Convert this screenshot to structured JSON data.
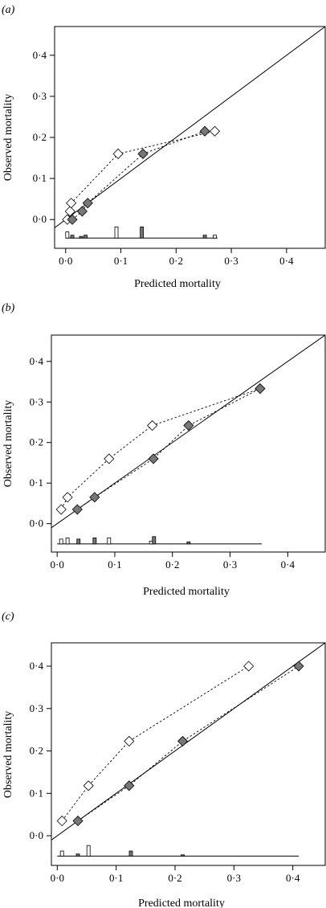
{
  "chart_data": [
    {
      "type": "scatter",
      "panel_label": "(a)",
      "xlabel": "Predicted mortality",
      "ylabel": "Observed mortality",
      "xlim": [
        -0.02,
        0.47
      ],
      "ylim": [
        -0.07,
        0.47
      ],
      "xticks": [
        0.0,
        0.1,
        0.2,
        0.3,
        0.4
      ],
      "yticks": [
        0.0,
        0.1,
        0.2,
        0.3,
        0.4
      ],
      "xtick_labels": [
        "0·0",
        "0·1",
        "0·2",
        "0·3",
        "0·4"
      ],
      "ytick_labels": [
        "0·0",
        "0·1",
        "0·2",
        "0·3",
        "0·4"
      ],
      "reference_line": "y = x",
      "series": [
        {
          "marker": "open-diamond",
          "color": "#ffffff",
          "x": [
            0.003,
            0.008,
            0.01,
            0.095,
            0.27
          ],
          "y": [
            0.0,
            0.02,
            0.04,
            0.16,
            0.215
          ]
        },
        {
          "marker": "filled-diamond",
          "color": "#777777",
          "x": [
            0.012,
            0.03,
            0.04,
            0.14,
            0.252
          ],
          "y": [
            0.0,
            0.02,
            0.04,
            0.16,
            0.215
          ]
        }
      ],
      "histogram": {
        "baseline_y": -0.045,
        "end_x": 0.275,
        "bars": [
          {
            "x": 0.003,
            "h": 0.015,
            "fill": "open"
          },
          {
            "x": 0.012,
            "h": 0.007,
            "fill": "filled"
          },
          {
            "x": 0.028,
            "h": 0.004,
            "fill": "filled"
          },
          {
            "x": 0.036,
            "h": 0.007,
            "fill": "filled"
          },
          {
            "x": 0.092,
            "h": 0.027,
            "fill": "open"
          },
          {
            "x": 0.138,
            "h": 0.027,
            "fill": "filled"
          },
          {
            "x": 0.252,
            "h": 0.007,
            "fill": "filled"
          },
          {
            "x": 0.27,
            "h": 0.007,
            "fill": "open"
          }
        ]
      }
    },
    {
      "type": "scatter",
      "panel_label": "(b)",
      "xlabel": "Predicted mortality",
      "ylabel": "Observed mortality",
      "xlim": [
        -0.01,
        0.465
      ],
      "ylim": [
        -0.07,
        0.465
      ],
      "xticks": [
        0.0,
        0.1,
        0.2,
        0.3,
        0.4
      ],
      "yticks": [
        0.0,
        0.1,
        0.2,
        0.3,
        0.4
      ],
      "xtick_labels": [
        "0·0",
        "0·1",
        "0·2",
        "0·3",
        "0·4"
      ],
      "ytick_labels": [
        "0·0",
        "0·1",
        "0·2",
        "0·3",
        "0·4"
      ],
      "reference_line": "y = x",
      "series": [
        {
          "marker": "open-diamond",
          "color": "#ffffff",
          "x": [
            0.007,
            0.018,
            0.09,
            0.165,
            0.352
          ],
          "y": [
            0.035,
            0.065,
            0.16,
            0.242,
            0.333
          ]
        },
        {
          "marker": "filled-diamond",
          "color": "#777777",
          "x": [
            0.035,
            0.065,
            0.167,
            0.228,
            0.352
          ],
          "y": [
            0.035,
            0.065,
            0.16,
            0.242,
            0.333
          ]
        }
      ],
      "histogram": {
        "baseline_y": -0.05,
        "end_x": 0.355,
        "bars": [
          {
            "x": 0.007,
            "h": 0.012,
            "fill": "open"
          },
          {
            "x": 0.018,
            "h": 0.015,
            "fill": "open"
          },
          {
            "x": 0.037,
            "h": 0.012,
            "fill": "filled"
          },
          {
            "x": 0.065,
            "h": 0.015,
            "fill": "filled"
          },
          {
            "x": 0.09,
            "h": 0.015,
            "fill": "open"
          },
          {
            "x": 0.163,
            "h": 0.007,
            "fill": "open"
          },
          {
            "x": 0.168,
            "h": 0.018,
            "fill": "filled"
          },
          {
            "x": 0.228,
            "h": 0.005,
            "fill": "filled"
          }
        ]
      }
    },
    {
      "type": "scatter",
      "panel_label": "(c)",
      "xlabel": "Predicted mortality",
      "ylabel": "Observed mortality",
      "xlim": [
        -0.01,
        0.455
      ],
      "ylim": [
        -0.07,
        0.455
      ],
      "xticks": [
        0.0,
        0.1,
        0.2,
        0.3,
        0.4
      ],
      "yticks": [
        0.0,
        0.1,
        0.2,
        0.3,
        0.4
      ],
      "xtick_labels": [
        "0·0",
        "0·1",
        "0·2",
        "0·3",
        "0·4"
      ],
      "ytick_labels": [
        "0·0",
        "0·1",
        "0·2",
        "0·3",
        "0·4"
      ],
      "reference_line": "y = x",
      "series": [
        {
          "marker": "open-diamond",
          "color": "#ffffff",
          "x": [
            0.008,
            0.053,
            0.122,
            0.325
          ],
          "y": [
            0.035,
            0.118,
            0.223,
            0.4
          ]
        },
        {
          "marker": "filled-diamond",
          "color": "#777777",
          "x": [
            0.035,
            0.122,
            0.213,
            0.41
          ],
          "y": [
            0.035,
            0.118,
            0.223,
            0.4
          ]
        }
      ],
      "histogram": {
        "baseline_y": -0.048,
        "end_x": 0.41,
        "bars": [
          {
            "x": 0.008,
            "h": 0.012,
            "fill": "open"
          },
          {
            "x": 0.035,
            "h": 0.005,
            "fill": "filled"
          },
          {
            "x": 0.053,
            "h": 0.025,
            "fill": "open"
          },
          {
            "x": 0.125,
            "h": 0.012,
            "fill": "filled"
          },
          {
            "x": 0.213,
            "h": 0.003,
            "fill": "filled"
          }
        ]
      }
    }
  ]
}
